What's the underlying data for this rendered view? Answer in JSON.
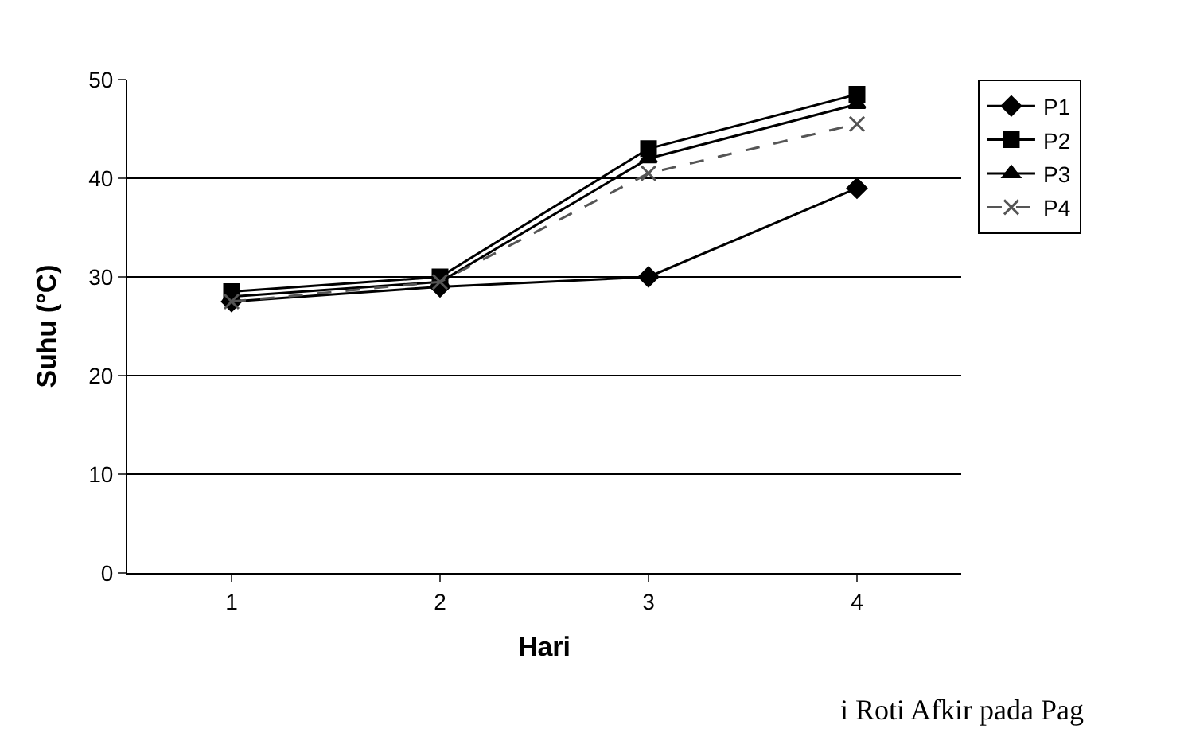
{
  "chart_data": {
    "type": "line",
    "xlabel": "Hari",
    "ylabel": "Suhu (°C)",
    "categories": [
      "1",
      "2",
      "3",
      "4"
    ],
    "series": [
      {
        "name": "P1",
        "color": "#000000",
        "marker": "diamond",
        "line_style": "solid",
        "values": [
          27.5,
          29,
          30,
          39
        ]
      },
      {
        "name": "P2",
        "color": "#000000",
        "marker": "square",
        "line_style": "solid",
        "values": [
          28.5,
          30,
          43,
          48.5
        ]
      },
      {
        "name": "P3",
        "color": "#000000",
        "marker": "triangle",
        "line_style": "solid",
        "values": [
          28,
          29.5,
          42,
          47.5
        ]
      },
      {
        "name": "P4",
        "color": "#555555",
        "marker": "cross",
        "line_style": "dashed",
        "values": [
          27.5,
          29.5,
          40.5,
          45.5
        ]
      }
    ],
    "ylim": [
      0,
      50
    ],
    "yticks": [
      0,
      10,
      20,
      30,
      40,
      50
    ],
    "grid": "y",
    "legend": "right",
    "annotations": [
      "i Roti Afkir pada Pag"
    ]
  }
}
